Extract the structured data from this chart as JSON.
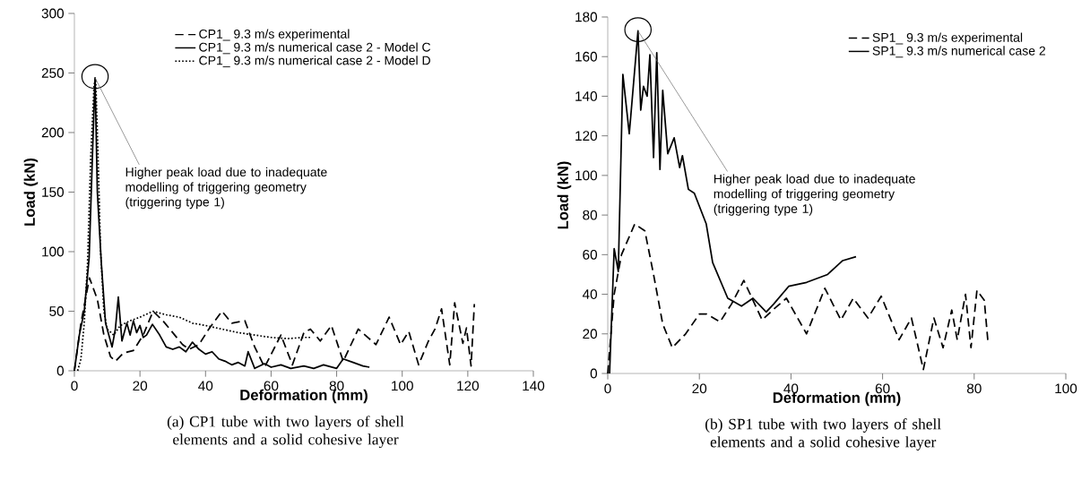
{
  "chart_data": [
    {
      "type": "line",
      "xlabel": "Deformation (mm)",
      "ylabel": "Load (kN)",
      "xlim": [
        0,
        140
      ],
      "xticks": [
        0,
        20,
        40,
        60,
        80,
        100,
        120,
        140
      ],
      "ylim": [
        0,
        300
      ],
      "yticks": [
        0,
        50,
        100,
        150,
        200,
        250,
        300
      ],
      "legend": "top",
      "annotations": [
        {
          "text": "Higher peak load due to inadequate modelling of triggering geometry (triggering type 1)",
          "x": 6.3,
          "y": 246
        },
        "(a) CP1 tube with two layers of shell elements and a solid cohesive layer"
      ],
      "series": [
        {
          "name": "CP1_ 9.3 m/s experimental",
          "color": "#000000",
          "line_style": "dashed",
          "x": [
            0,
            2,
            4.6,
            7,
            9,
            11,
            12.5,
            15,
            18,
            21,
            24,
            27,
            30,
            33,
            35,
            38,
            41,
            45,
            48,
            52,
            55,
            58,
            63,
            66.5,
            70,
            72,
            75,
            78.4,
            82,
            86.6,
            92,
            96,
            99.5,
            102,
            105,
            108,
            110,
            112,
            114.5,
            116,
            118.5,
            119.6,
            121,
            122
          ],
          "values": [
            0,
            40,
            78,
            60,
            30,
            12,
            8,
            15,
            17,
            30,
            50,
            42,
            32,
            22,
            18,
            22,
            35,
            50,
            40,
            42,
            20,
            3,
            30,
            5,
            32,
            35,
            25,
            38,
            8,
            35,
            22,
            45,
            22,
            33,
            5,
            25,
            35,
            52,
            5,
            57,
            23,
            36,
            4,
            56
          ]
        },
        {
          "name": "CP1_ 9.3 m/s numerical case 2 - Model C",
          "color": "#000000",
          "line_style": "solid",
          "x": [
            0,
            1.5,
            3,
            4.5,
            5.5,
            6.3,
            7,
            8.2,
            9.5,
            11.5,
            12.5,
            13.4,
            14.5,
            16,
            17,
            18,
            19,
            20,
            21,
            22,
            23.8,
            26,
            28,
            30,
            32,
            34,
            36,
            38,
            40,
            42,
            44,
            46,
            48,
            50,
            52,
            53,
            55,
            58,
            60,
            63,
            66,
            70,
            73,
            76,
            80,
            82,
            85,
            88,
            90
          ],
          "values": [
            0,
            30,
            50,
            95,
            180,
            246,
            150,
            91,
            40,
            20,
            35,
            62,
            25,
            40,
            30,
            42,
            32,
            38,
            28,
            30,
            39,
            30,
            20,
            18,
            20,
            16,
            24,
            18,
            14,
            16,
            10,
            8,
            5,
            7,
            4,
            16,
            2,
            6,
            3,
            5,
            2,
            4,
            2,
            5,
            2,
            10,
            7,
            4,
            3
          ]
        },
        {
          "name": "CP1_ 9.3 m/s numerical case 2 - Model D",
          "color": "#000000",
          "line_style": "dotted",
          "x": [
            1,
            2,
            3,
            4,
            5,
            6,
            6.5,
            7,
            8,
            9,
            10,
            12,
            14,
            17,
            20,
            24,
            28,
            32,
            36,
            40,
            45,
            50,
            55,
            60,
            65,
            70,
            72
          ],
          "values": [
            0,
            10,
            40,
            90,
            180,
            240,
            245,
            200,
            100,
            50,
            35,
            30,
            38,
            42,
            45,
            50,
            47,
            45,
            40,
            38,
            35,
            32,
            30,
            28,
            27,
            28,
            28
          ]
        }
      ]
    },
    {
      "type": "line",
      "xlabel": "Deformation (mm)",
      "ylabel": "Load (kN)",
      "xlim": [
        0,
        100
      ],
      "xticks": [
        0,
        20,
        40,
        60,
        80,
        100
      ],
      "ylim": [
        0,
        180
      ],
      "yticks": [
        0,
        20,
        40,
        60,
        80,
        100,
        120,
        140,
        160,
        180
      ],
      "legend": "top right",
      "annotations": [
        {
          "text": "Higher peak load due to inadequate modelling of triggering geometry (triggering type 1)",
          "x": 6.6,
          "y": 173
        },
        "(b) SP1 tube with two layers of shell elements and a solid cohesive layer"
      ],
      "series": [
        {
          "name": "SP1_ 9.3 m/s experimental",
          "color": "#000000",
          "line_style": "dashed",
          "x": [
            0,
            1.4,
            3,
            5.9,
            8.1,
            10,
            12,
            14.1,
            17,
            20,
            21.6,
            24.5,
            27,
            29.7,
            33.7,
            36,
            39,
            43.4,
            47.4,
            50.9,
            53.6,
            56.8,
            59.7,
            63.6,
            66.3,
            68.9,
            71.2,
            73.2,
            75.1,
            76.3,
            78.1,
            79.3,
            80.6,
            82.2,
            83
          ],
          "values": [
            0,
            40,
            60,
            75.5,
            72,
            50,
            25,
            13,
            20,
            30,
            30,
            26,
            35,
            47,
            27,
            32,
            38,
            20,
            43,
            27,
            38,
            28,
            39,
            17,
            28,
            2,
            28,
            13,
            32,
            17,
            40,
            13,
            42,
            37,
            16
          ]
        },
        {
          "name": "SP1_ 9.3 m/s numerical case 2",
          "color": "#000000",
          "line_style": "solid",
          "x": [
            0.4,
            1.4,
            2.3,
            3.3,
            4.7,
            6.6,
            7.2,
            7.8,
            8.6,
            9.2,
            10,
            10.7,
            11.4,
            12,
            13.1,
            14.5,
            15.7,
            16.3,
            17.6,
            18.9,
            21.5,
            22.9,
            26.2,
            29.2,
            31.7,
            34.6,
            36.2,
            39.5,
            43.4,
            48,
            51.3,
            54.2
          ],
          "values": [
            0,
            63,
            51.5,
            151,
            121,
            173,
            133,
            145,
            140,
            161,
            109,
            162,
            103,
            143,
            111,
            119,
            104,
            110,
            93,
            91,
            75.5,
            56,
            38,
            34,
            38,
            31,
            35,
            44,
            46,
            50,
            57,
            59
          ]
        }
      ]
    }
  ]
}
